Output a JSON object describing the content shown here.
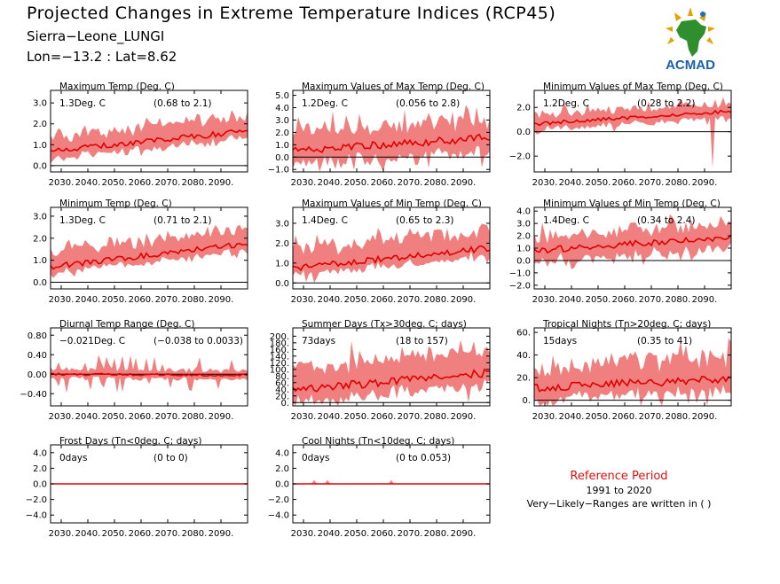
{
  "header": {
    "title": "Projected Changes in Extreme Temperature Indices (RCP45)",
    "station": "Sierra−Leone_LUNGI",
    "coords": "Lon=−13.2 : Lat=8.62"
  },
  "logo": {
    "text": "ACMAD",
    "icon": "africa-map-logo-icon"
  },
  "colors": {
    "band": "#f08080",
    "mean_line": "#e00000",
    "zero_line": "#000000",
    "ref_title": "#e01010"
  },
  "reference": {
    "title": "Reference Period",
    "years": "1991 to 2020",
    "note": "Very−Likely−Ranges are written in ( )"
  },
  "chart_data": [
    {
      "id": "c1",
      "type": "area",
      "title": "Maximum Temp (Deg. C)",
      "summary": "1.3Deg. C",
      "range": "(0.68 to 2.1)",
      "x_ticks": [
        "2030.",
        "2040.",
        "2050.",
        "2060.",
        "2070.",
        "2080.",
        "2090."
      ],
      "xlim": [
        2026,
        2100
      ],
      "ylim": [
        -0.3,
        3.6
      ],
      "y_ticks": [
        0,
        1,
        2,
        3
      ],
      "y_tick_labels": [
        "0.0",
        "1.0",
        "2.0",
        "3.0"
      ],
      "mean_start": 0.7,
      "mean_end": 1.65,
      "band_low": 0.35,
      "band_high": 0.7,
      "spike": 0.15
    },
    {
      "id": "c2",
      "type": "area",
      "title": "Maximum Values of Max Temp (Deg. C)",
      "summary": "1.2Deg. C",
      "range": "(0.056 to 2.8)",
      "x_ticks": [
        "2030.",
        "2040.",
        "2050.",
        "2060.",
        "2070.",
        "2080.",
        "2090."
      ],
      "xlim": [
        2026,
        2100
      ],
      "ylim": [
        -1.2,
        5.4
      ],
      "y_ticks": [
        -1,
        0,
        1,
        2,
        3,
        4,
        5
      ],
      "y_tick_labels": [
        "−1.0",
        "0.0",
        "1.0",
        "2.0",
        "3.0",
        "4.0",
        "5.0"
      ],
      "mean_start": 0.5,
      "mean_end": 1.6,
      "band_low": 1.1,
      "band_high": 1.4,
      "spike": 0.8
    },
    {
      "id": "c3",
      "type": "area",
      "title": "Minimum Values of Max Temp (Deg. C)",
      "summary": "1.2Deg. C",
      "range": "(0.28 to 2.2)",
      "x_ticks": [
        "2030.",
        "2040.",
        "2050.",
        "2060.",
        "2070.",
        "2080.",
        "2090."
      ],
      "xlim": [
        2026,
        2100
      ],
      "ylim": [
        -3.3,
        3.4
      ],
      "y_ticks": [
        -2,
        0,
        2
      ],
      "y_tick_labels": [
        "−2.0",
        "0.0",
        "2.0"
      ],
      "mean_start": 0.65,
      "mean_end": 1.7,
      "band_low": 0.5,
      "band_high": 0.7,
      "spike": 0.3,
      "dip": -3.0
    },
    {
      "id": "c4",
      "type": "area",
      "title": "Minimum Temp (Deg. C)",
      "summary": "1.3Deg. C",
      "range": "(0.71 to 2.1)",
      "x_ticks": [
        "2030.",
        "2040.",
        "2050.",
        "2060.",
        "2070.",
        "2080.",
        "2090."
      ],
      "xlim": [
        2026,
        2100
      ],
      "ylim": [
        -0.3,
        3.4
      ],
      "y_ticks": [
        0,
        1,
        2,
        3
      ],
      "y_tick_labels": [
        "0.0",
        "1.0",
        "2.0",
        "3.0"
      ],
      "mean_start": 0.7,
      "mean_end": 1.75,
      "band_low": 0.3,
      "band_high": 0.7,
      "spike": 0.2
    },
    {
      "id": "c5",
      "type": "area",
      "title": "Maximum Values of Min Temp (Deg. C)",
      "summary": "1.4Deg. C",
      "range": "(0.65 to 2.3)",
      "x_ticks": [
        "2030.",
        "2040.",
        "2050.",
        "2060.",
        "2070.",
        "2080.",
        "2090."
      ],
      "xlim": [
        2026,
        2100
      ],
      "ylim": [
        -0.3,
        3.8
      ],
      "y_ticks": [
        0,
        1,
        2,
        3
      ],
      "y_tick_labels": [
        "0.0",
        "1.0",
        "2.0",
        "3.0"
      ],
      "mean_start": 0.75,
      "mean_end": 1.75,
      "band_low": 0.35,
      "band_high": 0.9,
      "spike": 0.3
    },
    {
      "id": "c6",
      "type": "area",
      "title": "Minimum Values of Min Temp (Deg. C)",
      "summary": "1.4Deg. C",
      "range": "(0.34 to 2.4)",
      "x_ticks": [
        "2030.",
        "2040.",
        "2050.",
        "2060.",
        "2070.",
        "2080.",
        "2090."
      ],
      "xlim": [
        2026,
        2100
      ],
      "ylim": [
        -2.3,
        4.3
      ],
      "y_ticks": [
        -2,
        -1,
        0,
        1,
        2,
        3,
        4
      ],
      "y_tick_labels": [
        "−2.0",
        "−1.0",
        "0.0",
        "1.0",
        "2.0",
        "3.0",
        "4.0"
      ],
      "mean_start": 0.8,
      "mean_end": 1.9,
      "band_low": 0.9,
      "band_high": 1.1,
      "spike": 0.5
    },
    {
      "id": "c7",
      "type": "area",
      "title": "Diurnal Temp Range (Deg. C)",
      "summary": "−0.021Deg. C",
      "range": "(−0.038 to 0.0033)",
      "x_ticks": [
        "2030.",
        "2040.",
        "2050.",
        "2060.",
        "2070.",
        "2080.",
        "2090."
      ],
      "xlim": [
        2026,
        2100
      ],
      "ylim": [
        -0.65,
        0.95
      ],
      "y_ticks": [
        -0.4,
        0,
        0.4,
        0.8
      ],
      "y_tick_labels": [
        "−0.40",
        "0.00",
        "0.40",
        "0.80"
      ],
      "mean_start": 0.0,
      "mean_end": -0.02,
      "band_low": 0.08,
      "band_high": 0.1,
      "spike": 0.2
    },
    {
      "id": "c8",
      "type": "area",
      "title": "Summer Days (Tx>30deg. C; days)",
      "summary": "73days",
      "range": "(18 to 157)",
      "x_ticks": [
        "2030.",
        "2040.",
        "2050.",
        "2060.",
        "2070.",
        "2080.",
        "2090."
      ],
      "xlim": [
        2026,
        2100
      ],
      "ylim": [
        -10,
        225
      ],
      "y_ticks": [
        0,
        20,
        40,
        60,
        80,
        100,
        120,
        140,
        160,
        180,
        200
      ],
      "y_tick_labels": [
        "0.",
        "20.",
        "40.",
        "60.",
        "80.",
        "100.",
        "120.",
        "140.",
        "160.",
        "180.",
        "200."
      ],
      "mean_start": 38,
      "mean_end": 90,
      "band_low": 35,
      "band_high": 65,
      "spike": 25
    },
    {
      "id": "c9",
      "type": "area",
      "title": "Tropical Nights (Tn>20deg. C; days)",
      "summary": "15days",
      "range": "(0.35 to 41)",
      "x_ticks": [
        "2030.",
        "2040.",
        "2050.",
        "2060.",
        "2070.",
        "2080.",
        "2090."
      ],
      "xlim": [
        2026,
        2100
      ],
      "ylim": [
        -5,
        64
      ],
      "y_ticks": [
        0,
        20,
        40,
        60
      ],
      "y_tick_labels": [
        "0.",
        "20.",
        "40.",
        "60."
      ],
      "mean_start": 11,
      "mean_end": 19,
      "band_low": 10,
      "band_high": 18,
      "spike": 10
    },
    {
      "id": "c10",
      "type": "area",
      "title": "Frost Days (Tn<0deg. C; days)",
      "summary": "0days",
      "range": "(0 to 0)",
      "x_ticks": [
        "2030.",
        "2040.",
        "2050.",
        "2060.",
        "2070.",
        "2080.",
        "2090."
      ],
      "xlim": [
        2026,
        2100
      ],
      "ylim": [
        -5,
        5
      ],
      "y_ticks": [
        -4,
        -2,
        0,
        2,
        4
      ],
      "y_tick_labels": [
        "−4.0",
        "−2.0",
        "0.0",
        "2.0",
        "4.0"
      ],
      "mean_start": 0,
      "mean_end": 0,
      "band_low": 0.03,
      "band_high": 0.03,
      "spike": 0,
      "flat": true
    },
    {
      "id": "c11",
      "type": "area",
      "title": "Cool Nights (Tn<10deg. C; days)",
      "summary": "0days",
      "range": "(0 to 0.053)",
      "x_ticks": [
        "2030.",
        "2040.",
        "2050.",
        "2060.",
        "2070.",
        "2080.",
        "2090."
      ],
      "xlim": [
        2026,
        2100
      ],
      "ylim": [
        -5,
        5
      ],
      "y_ticks": [
        -4,
        -2,
        0,
        2,
        4
      ],
      "y_tick_labels": [
        "−4.0",
        "−2.0",
        "0.0",
        "2.0",
        "4.0"
      ],
      "mean_start": 0,
      "mean_end": 0,
      "band_low": 0.03,
      "band_high": 0.03,
      "spike": 0,
      "flat": true,
      "bumps": [
        2034,
        2039,
        2063
      ]
    }
  ]
}
